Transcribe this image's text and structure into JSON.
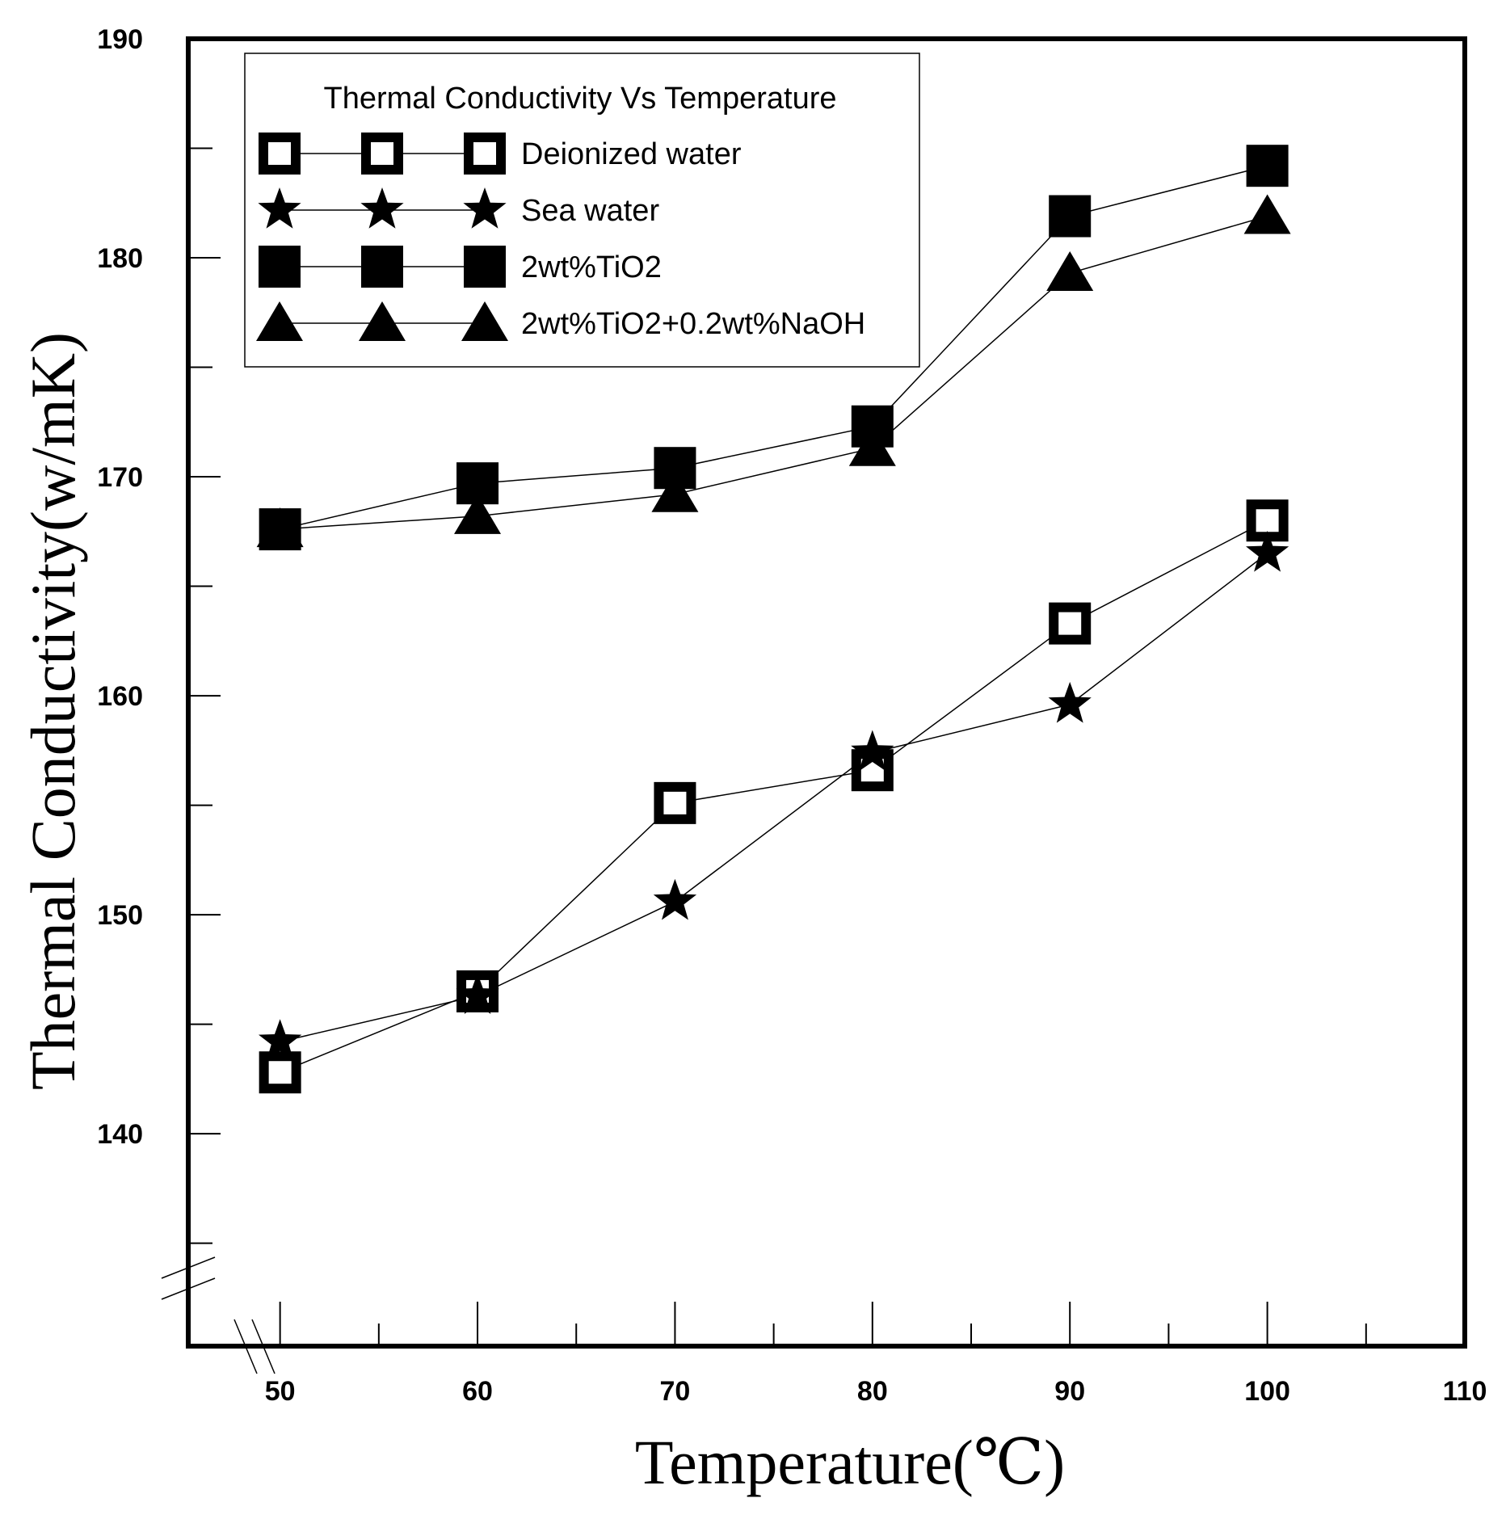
{
  "chart_data": {
    "type": "line",
    "title": "Thermal Conductivity  Vs Temperature",
    "xlabel": "Temperature(℃)",
    "ylabel": "Thermal Conductivity(w/mK)",
    "xlim": [
      45.35,
      110
    ],
    "ylim": [
      130.3,
      190
    ],
    "x_ticks": [
      50,
      60,
      70,
      80,
      90,
      100,
      110
    ],
    "y_ticks": [
      140,
      150,
      160,
      170,
      180,
      190
    ],
    "x_minor_ticks": [
      55,
      65,
      75,
      85,
      95,
      105
    ],
    "y_minor_ticks": [
      135,
      145,
      155,
      165,
      175,
      185
    ],
    "x": [
      50,
      60,
      70,
      80,
      90,
      100
    ],
    "legend_position": "top-left",
    "series": [
      {
        "name": "Deionized water",
        "marker": "open-square",
        "values": [
          142.8,
          146.5,
          155.1,
          156.6,
          163.3,
          168.0
        ]
      },
      {
        "name": "Sea water",
        "marker": "star",
        "values": [
          144.2,
          146.3,
          150.6,
          157.4,
          159.6,
          166.5
        ]
      },
      {
        "name": "2wt%TiO2",
        "marker": "filled-square",
        "values": [
          167.6,
          169.7,
          170.4,
          172.3,
          181.9,
          184.2
        ]
      },
      {
        "name": "2wt%TiO2+0.2wt%NaOH",
        "marker": "triangle",
        "values": [
          167.6,
          168.2,
          169.2,
          171.3,
          179.3,
          181.9
        ]
      }
    ]
  }
}
